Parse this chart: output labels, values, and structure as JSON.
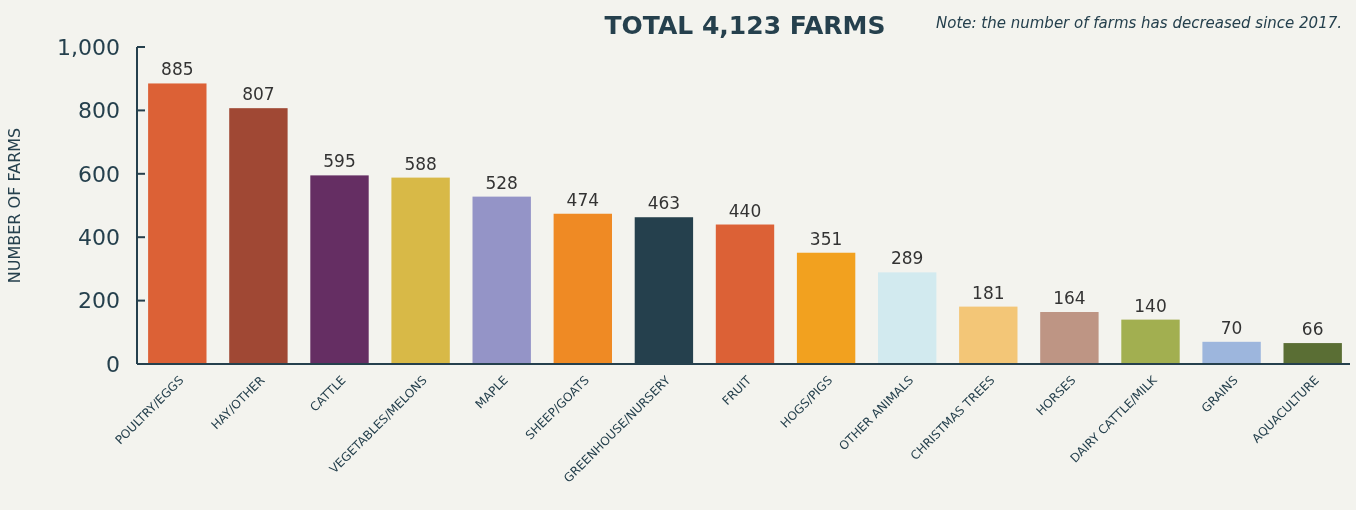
{
  "chart_data": {
    "type": "bar",
    "title": "TOTAL 4,123 FARMS",
    "ylabel": "NUMBER OF FARMS",
    "annotations": [
      "Note: the number of farms has decreased since 2017."
    ],
    "categories": [
      "POULTRY/EGGS",
      "HAY/OTHER",
      "CATTLE",
      "VEGETABLES/MELONS",
      "MAPLE",
      "SHEEP/GOATS",
      "GREENHOUSE/NURSERY",
      "FRUIT",
      "HOGS/PIGS",
      "OTHER ANIMALS",
      "CHRISTMAS TREES",
      "HORSES",
      "DAIRY CATTLE/MILK",
      "GRAINS",
      "AQUACULTURE"
    ],
    "values": [
      885,
      807,
      595,
      588,
      528,
      474,
      463,
      440,
      351,
      289,
      181,
      164,
      140,
      70,
      66
    ],
    "colors": [
      "#dc6136",
      "#a04834",
      "#652e63",
      "#d8b947",
      "#9494c7",
      "#ef8a24",
      "#25404d",
      "#dc6136",
      "#f2a11f",
      "#d2eaef",
      "#f3c677",
      "#be9584",
      "#a2af50",
      "#9db6dd",
      "#5a6e34"
    ],
    "ylim": [
      0,
      1000
    ],
    "yticks": [
      0,
      200,
      400,
      600,
      800,
      {
        "value": 1000,
        "label": "1,000"
      }
    ],
    "data_labels": true,
    "grid": false
  }
}
